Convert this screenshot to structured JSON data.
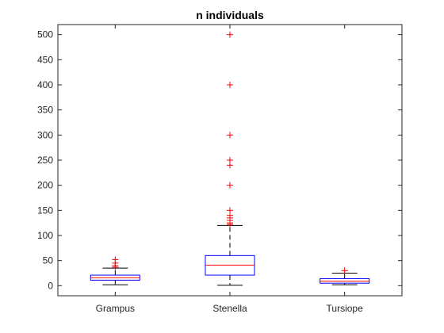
{
  "chart_data": {
    "type": "boxplot",
    "title": "n individuals",
    "xlabel": "",
    "ylabel": "",
    "categories": [
      "Grampus",
      "Stenella",
      "Tursiope"
    ],
    "ylim": [
      -20,
      520
    ],
    "yticks": [
      0,
      50,
      100,
      150,
      200,
      250,
      300,
      350,
      400,
      450,
      500
    ],
    "grid": false,
    "boxes": [
      {
        "category": "Grampus",
        "whisker_low": 2,
        "q1": 11,
        "median": 16,
        "q3": 21,
        "whisker_high": 35,
        "outliers": [
          37,
          40,
          45,
          52
        ]
      },
      {
        "category": "Stenella",
        "whisker_low": 1,
        "q1": 21,
        "median": 41,
        "q3": 60,
        "whisker_high": 120,
        "outliers": [
          122,
          125,
          130,
          135,
          140,
          150,
          200,
          240,
          250,
          300,
          400,
          500
        ]
      },
      {
        "category": "Tursiope",
        "whisker_low": 2,
        "q1": 5,
        "median": 9,
        "q3": 14,
        "whisker_high": 25,
        "outliers": [
          30
        ]
      }
    ],
    "colors": {
      "box": "#0000ff",
      "median": "#ff0000",
      "whisker": "#000000",
      "outlier": "#ff0000",
      "axis": "#262626"
    }
  }
}
